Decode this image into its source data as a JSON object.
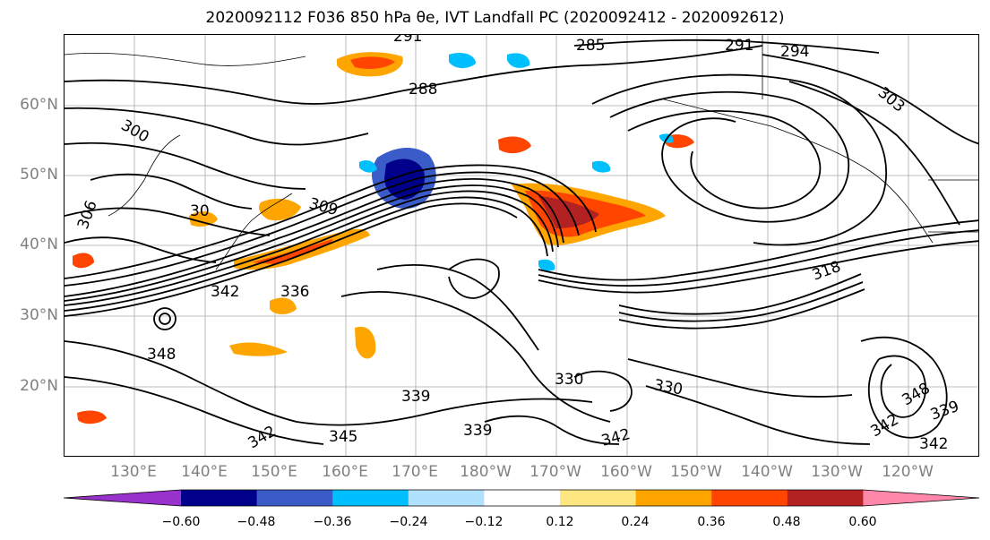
{
  "title": "2020092112 F036 850 hPa θe, IVT Landfall PC (2020092412 - 2020092612)",
  "map": {
    "lat_labels": [
      "60°N",
      "50°N",
      "40°N",
      "30°N",
      "20°N"
    ],
    "lon_labels": [
      "130°E",
      "140°E",
      "150°E",
      "160°E",
      "170°E",
      "180°W",
      "170°W",
      "160°W",
      "150°W",
      "140°W",
      "130°W",
      "120°W"
    ],
    "contour_labels": [
      "291",
      "285",
      "291",
      "294",
      "288",
      "300",
      "303",
      "306",
      "309",
      "30",
      "342",
      "336",
      "348",
      "339",
      "345",
      "330",
      "339",
      "342",
      "330",
      "318",
      "342",
      "348",
      "339",
      "342",
      "342"
    ],
    "colors": {
      "line": "#000000",
      "tick_label": "#808080"
    }
  },
  "colorbar": {
    "ticks": [
      "−0.60",
      "−0.48",
      "−0.36",
      "−0.24",
      "−0.12",
      "0.12",
      "0.24",
      "0.36",
      "0.48",
      "0.60"
    ],
    "colors": [
      "#9932cc",
      "#00008b",
      "#3a5cc9",
      "#00bfff",
      "#b0e2ff",
      "#ffffff",
      "#ffe680",
      "#ffa500",
      "#ff4500",
      "#b22222",
      "#ff88aa"
    ],
    "extend": "both"
  }
}
